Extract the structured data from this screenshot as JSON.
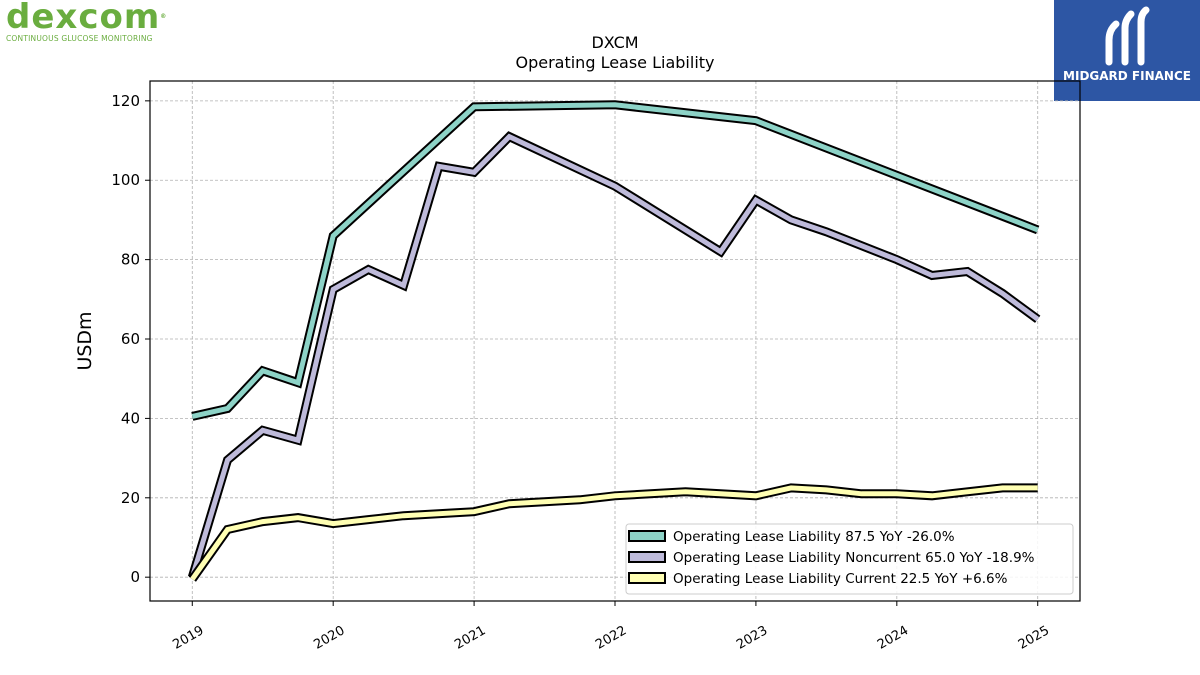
{
  "branding": {
    "left_logo_word": "dexcom",
    "left_logo_reg": "®",
    "left_logo_tagline": "CONTINUOUS GLUCOSE MONITORING",
    "right_logo_name": "MIDGARD FINANCE",
    "colors": {
      "dexcom_green": "#6aad3f",
      "midgard_blue": "#2d56a4"
    }
  },
  "chart_data": {
    "type": "line",
    "title": "DXCM",
    "subtitle": "Operating Lease Liability",
    "xlabel": "",
    "ylabel": "USDm",
    "xlim": [
      2018.7,
      2025.3
    ],
    "ylim": [
      -6,
      125
    ],
    "x_ticks": [
      "2019",
      "2020",
      "2021",
      "2022",
      "2023",
      "2024",
      "2025"
    ],
    "y_ticks": [
      "0",
      "20",
      "40",
      "60",
      "80",
      "100",
      "120"
    ],
    "grid": true,
    "legend_position": "lower-right",
    "series": [
      {
        "name": "Operating Lease Liability  87.5 YoY -26.0%",
        "color": "#8dd3c7",
        "points": [
          [
            2019.0,
            40.5
          ],
          [
            2019.25,
            42.5
          ],
          [
            2019.5,
            52.0
          ],
          [
            2019.75,
            49.0
          ],
          [
            2020.0,
            86.0
          ],
          [
            2021.0,
            118.5
          ],
          [
            2022.0,
            119.0
          ],
          [
            2023.0,
            115.0
          ],
          [
            2025.0,
            87.5
          ]
        ]
      },
      {
        "name": "Operating Lease Liability Noncurrent  65.0 YoY -18.9%",
        "color": "#bebada",
        "points": [
          [
            2019.0,
            0.0
          ],
          [
            2019.25,
            29.5
          ],
          [
            2019.5,
            37.0
          ],
          [
            2019.75,
            34.5
          ],
          [
            2020.0,
            72.5
          ],
          [
            2020.25,
            77.5
          ],
          [
            2020.5,
            73.5
          ],
          [
            2020.75,
            103.5
          ],
          [
            2021.0,
            102.0
          ],
          [
            2021.25,
            111.0
          ],
          [
            2022.0,
            98.5
          ],
          [
            2022.75,
            82.0
          ],
          [
            2023.0,
            95.0
          ],
          [
            2023.25,
            90.0
          ],
          [
            2023.5,
            87.0
          ],
          [
            2024.0,
            80.0
          ],
          [
            2024.25,
            76.0
          ],
          [
            2024.5,
            77.0
          ],
          [
            2024.75,
            71.5
          ],
          [
            2025.0,
            65.0
          ]
        ]
      },
      {
        "name": "Operating Lease Liability Current  22.5 YoY +6.6%",
        "color": "#ffffb3",
        "points": [
          [
            2019.0,
            -0.5
          ],
          [
            2019.25,
            12.0
          ],
          [
            2019.5,
            14.0
          ],
          [
            2019.75,
            15.0
          ],
          [
            2020.0,
            13.5
          ],
          [
            2020.25,
            14.5
          ],
          [
            2020.5,
            15.5
          ],
          [
            2021.0,
            16.5
          ],
          [
            2021.25,
            18.5
          ],
          [
            2021.75,
            19.5
          ],
          [
            2022.0,
            20.5
          ],
          [
            2022.5,
            21.5
          ],
          [
            2023.0,
            20.5
          ],
          [
            2023.25,
            22.5
          ],
          [
            2023.5,
            22.0
          ],
          [
            2023.75,
            21.0
          ],
          [
            2024.0,
            21.0
          ],
          [
            2024.25,
            20.5
          ],
          [
            2024.5,
            21.5
          ],
          [
            2024.75,
            22.5
          ],
          [
            2025.0,
            22.5
          ]
        ]
      }
    ]
  }
}
